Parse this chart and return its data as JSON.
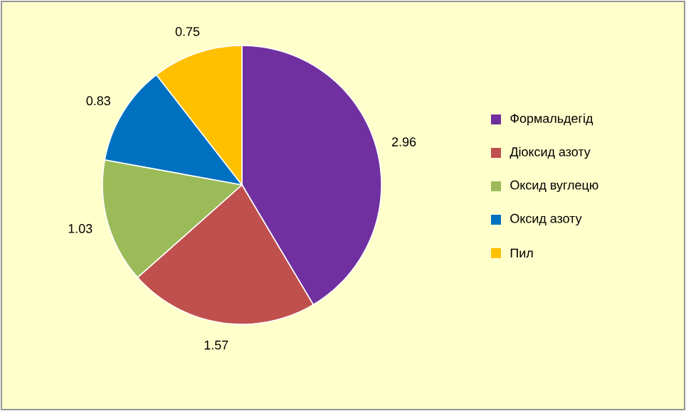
{
  "chart_data": {
    "type": "pie",
    "categories": [
      "Формальдегід",
      "Діоксид азоту",
      "Оксид вуглецю",
      "Оксид азоту",
      "Пил"
    ],
    "values": [
      2.96,
      1.57,
      1.03,
      0.83,
      0.75
    ],
    "colors": [
      "#7030a0",
      "#c0504d",
      "#9bbb59",
      "#0070c0",
      "#ffc000"
    ],
    "data_labels": true,
    "legend": "right"
  }
}
